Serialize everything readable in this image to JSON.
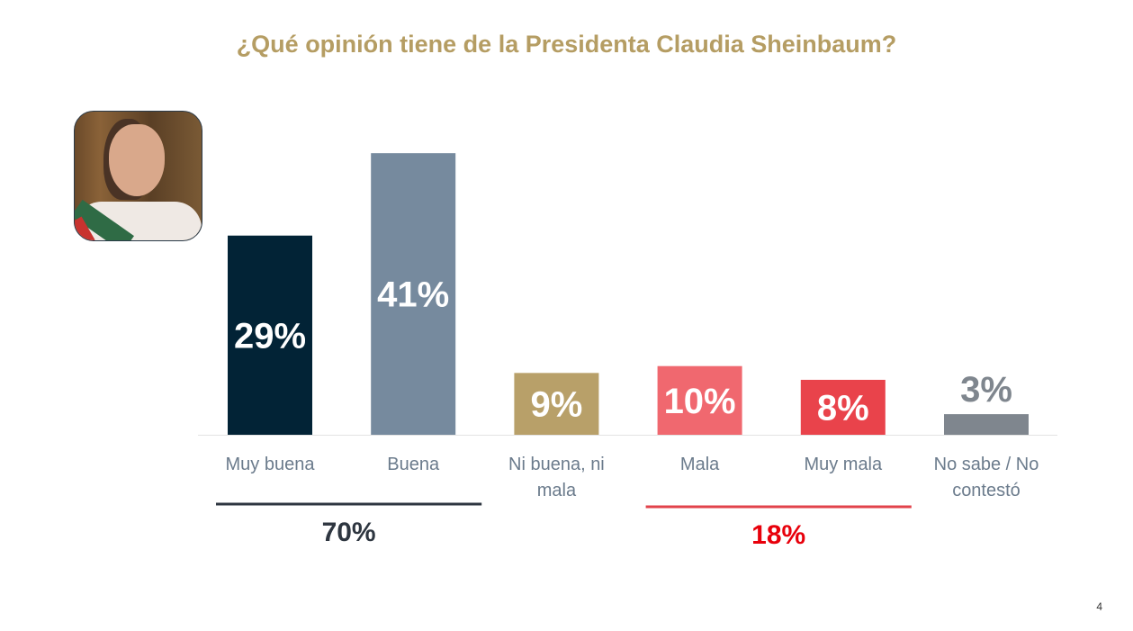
{
  "title": "¿Qué opinión tiene de la Presidenta Claudia Sheinbaum?",
  "page_number": "4",
  "chart_data": {
    "type": "bar",
    "title": "¿Qué opinión tiene de la Presidenta Claudia Sheinbaum?",
    "categories": [
      [
        "Muy buena"
      ],
      [
        "Buena"
      ],
      [
        "Ni buena, ni",
        "mala"
      ],
      [
        "Mala"
      ],
      [
        "Muy mala"
      ],
      [
        "No sabe / No",
        "contestó"
      ]
    ],
    "values": [
      29,
      41,
      9,
      10,
      8,
      3
    ],
    "value_labels": [
      "29%",
      "41%",
      "9%",
      "10%",
      "8%",
      "3%"
    ],
    "colors": [
      "#022336",
      "#768a9e",
      "#b8a069",
      "#f0686f",
      "#e9434b",
      "#7f868e"
    ],
    "label_colors": [
      "#ffffff",
      "#ffffff",
      "#ffffff",
      "#ffffff",
      "#ffffff",
      "#7f868e"
    ],
    "xlabel": "",
    "ylabel": "",
    "ylim": [
      0,
      42
    ],
    "grid": false,
    "groups": [
      {
        "label": "70%",
        "from": 0,
        "to": 1,
        "color": "#2e3640",
        "text_color": "#2e3640"
      },
      {
        "label": "18%",
        "from": 3,
        "to": 4,
        "color": "#e2434b",
        "text_color": "#e8000b"
      }
    ]
  }
}
